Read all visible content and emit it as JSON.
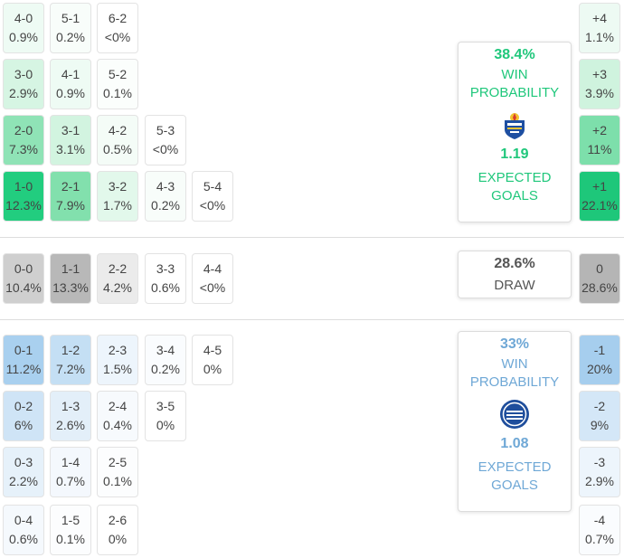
{
  "home": {
    "win_probability": "38.4%",
    "win_label": [
      "WIN",
      "PROBABILITY"
    ],
    "expected_goals": "1.19",
    "xg_label": [
      "EXPECTED",
      "GOALS"
    ],
    "color": "#1fc77b",
    "logo_icon": "getafe-crest-icon",
    "rows": [
      [
        {
          "score": "4-0",
          "pct": "0.9%",
          "bg": "#eefbf4"
        },
        {
          "score": "5-1",
          "pct": "0.2%",
          "bg": "#f8fdfa"
        },
        {
          "score": "6-2",
          "pct": "<0%",
          "bg": "#ffffff"
        }
      ],
      [
        {
          "score": "3-0",
          "pct": "2.9%",
          "bg": "#d6f5e3"
        },
        {
          "score": "4-1",
          "pct": "0.9%",
          "bg": "#eefbf4"
        },
        {
          "score": "5-2",
          "pct": "0.1%",
          "bg": "#fbfefc"
        }
      ],
      [
        {
          "score": "2-0",
          "pct": "7.3%",
          "bg": "#8fe3b6"
        },
        {
          "score": "3-1",
          "pct": "3.1%",
          "bg": "#d2f4e0"
        },
        {
          "score": "4-2",
          "pct": "0.5%",
          "bg": "#f4fcf7"
        },
        {
          "score": "5-3",
          "pct": "<0%",
          "bg": "#ffffff"
        }
      ],
      [
        {
          "score": "1-0",
          "pct": "12.3%",
          "bg": "#22cd7f"
        },
        {
          "score": "2-1",
          "pct": "7.9%",
          "bg": "#82e0ad"
        },
        {
          "score": "3-2",
          "pct": "1.7%",
          "bg": "#e2f8eb"
        },
        {
          "score": "4-3",
          "pct": "0.2%",
          "bg": "#f8fdfa"
        },
        {
          "score": "5-4",
          "pct": "<0%",
          "bg": "#ffffff"
        }
      ]
    ],
    "margins": [
      {
        "label": "+4",
        "pct": "1.1%",
        "bg": "#edfaf3"
      },
      {
        "label": "+3",
        "pct": "3.9%",
        "bg": "#cff3de"
      },
      {
        "label": "+2",
        "pct": "11%",
        "bg": "#7ddfab"
      },
      {
        "label": "+1",
        "pct": "22.1%",
        "bg": "#1ec77a"
      }
    ]
  },
  "draw": {
    "probability": "28.6%",
    "label": "DRAW",
    "row": [
      {
        "score": "0-0",
        "pct": "10.4%",
        "bg": "#cfcfcf"
      },
      {
        "score": "1-1",
        "pct": "13.3%",
        "bg": "#b8b8b8"
      },
      {
        "score": "2-2",
        "pct": "4.2%",
        "bg": "#ebebeb"
      },
      {
        "score": "3-3",
        "pct": "0.6%",
        "bg": "#ffffff"
      },
      {
        "score": "4-4",
        "pct": "<0%",
        "bg": "#ffffff"
      }
    ],
    "margin": {
      "label": "0",
      "pct": "28.6%",
      "bg": "#b5b5b5"
    }
  },
  "away": {
    "win_probability": "33%",
    "win_label": [
      "WIN",
      "PROBABILITY"
    ],
    "expected_goals": "1.08",
    "xg_label": [
      "EXPECTED",
      "GOALS"
    ],
    "color": "#6fa8d6",
    "logo_icon": "alaves-crest-icon",
    "rows": [
      [
        {
          "score": "0-1",
          "pct": "11.2%",
          "bg": "#a9d0ef"
        },
        {
          "score": "1-2",
          "pct": "7.2%",
          "bg": "#c4dff4"
        },
        {
          "score": "2-3",
          "pct": "1.5%",
          "bg": "#edf5fc"
        },
        {
          "score": "3-4",
          "pct": "0.2%",
          "bg": "#fafcfe"
        },
        {
          "score": "4-5",
          "pct": "0%",
          "bg": "#ffffff"
        }
      ],
      [
        {
          "score": "0-2",
          "pct": "6%",
          "bg": "#cfe4f6"
        },
        {
          "score": "1-3",
          "pct": "2.6%",
          "bg": "#e3eff9"
        },
        {
          "score": "2-4",
          "pct": "0.4%",
          "bg": "#f7fafd"
        },
        {
          "score": "3-5",
          "pct": "0%",
          "bg": "#ffffff"
        }
      ],
      [
        {
          "score": "0-3",
          "pct": "2.2%",
          "bg": "#e6f1fa"
        },
        {
          "score": "1-4",
          "pct": "0.7%",
          "bg": "#f4f8fd"
        },
        {
          "score": "2-5",
          "pct": "0.1%",
          "bg": "#fcfdfe"
        }
      ],
      [
        {
          "score": "0-4",
          "pct": "0.6%",
          "bg": "#f5f9fd"
        },
        {
          "score": "1-5",
          "pct": "0.1%",
          "bg": "#fcfdfe"
        },
        {
          "score": "2-6",
          "pct": "0%",
          "bg": "#ffffff"
        }
      ]
    ],
    "margins": [
      {
        "label": "-1",
        "pct": "20%",
        "bg": "#a6ceee"
      },
      {
        "label": "-2",
        "pct": "9%",
        "bg": "#d4e7f7"
      },
      {
        "label": "-3",
        "pct": "2.9%",
        "bg": "#edf5fc"
      },
      {
        "label": "-4",
        "pct": "0.7%",
        "bg": "#fafcfe"
      }
    ]
  }
}
